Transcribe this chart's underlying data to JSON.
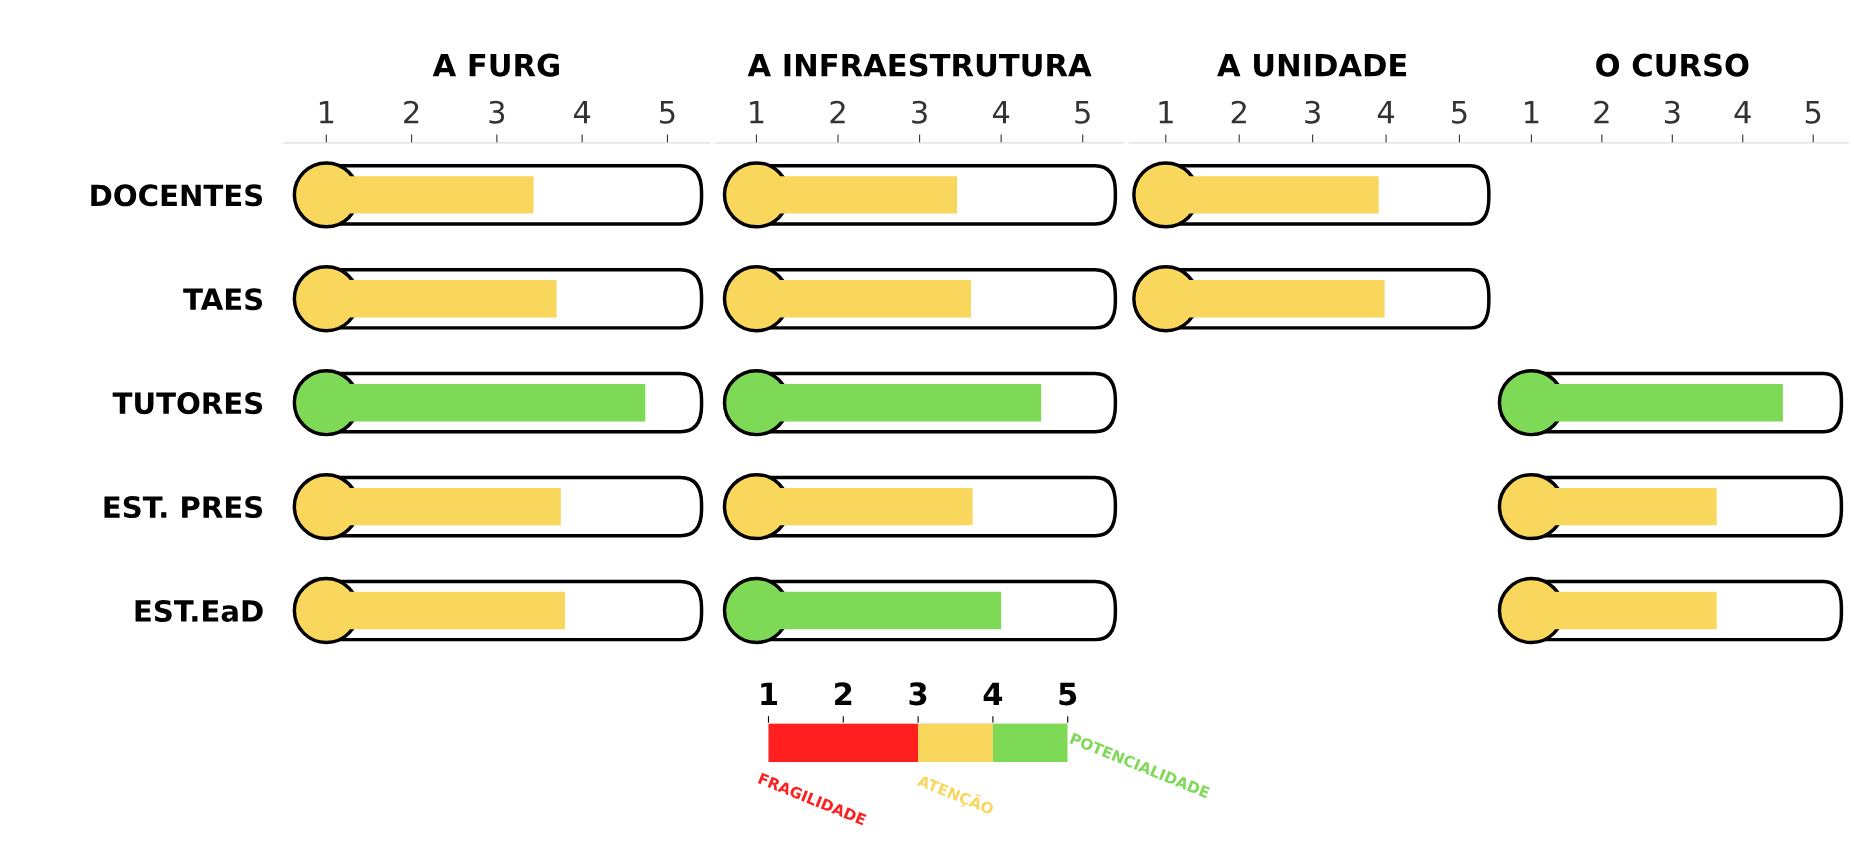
{
  "chart_data": [
    {
      "type": "bar",
      "orientation": "horizontal",
      "title": "A FURG",
      "categories": [
        "DOCENTES",
        "TAES",
        "TUTORES",
        "EST. PRES",
        "EST.EaD"
      ],
      "values": [
        3.43,
        3.7,
        4.74,
        3.75,
        3.8
      ],
      "colors": [
        "#f9d65c",
        "#f9d65c",
        "#7ed957",
        "#f9d65c",
        "#f9d65c"
      ],
      "xlim": [
        0.5,
        5.5
      ],
      "xticks": [
        1,
        2,
        3,
        4,
        5
      ],
      "grid": false
    },
    {
      "type": "bar",
      "orientation": "horizontal",
      "title": "A INFRAESTRUTURA",
      "categories": [
        null,
        null,
        null,
        null,
        null
      ],
      "values": [
        3.46,
        3.63,
        4.49,
        3.65,
        4.0
      ],
      "colors": [
        "#f9d65c",
        "#f9d65c",
        "#7ed957",
        "#f9d65c",
        "#7ed957"
      ],
      "xlim": [
        0.5,
        5.5
      ],
      "xticks": [
        1,
        2,
        3,
        4,
        5
      ],
      "grid": false,
      "tick_labels": "x"
    },
    {
      "type": "bar",
      "orientation": "horizontal",
      "title": "A UNIDADE",
      "categories": [
        null,
        null,
        null,
        null,
        null
      ],
      "values": [
        3.9,
        3.98,
        null,
        null,
        null
      ],
      "colors": [
        "#f9d65c",
        "#f9d65c",
        null,
        null,
        null
      ],
      "xlim": [
        0.5,
        5.5
      ],
      "xticks": [
        1,
        2,
        3,
        4,
        5
      ],
      "grid": false,
      "tick_labels": "x"
    },
    {
      "type": "bar",
      "orientation": "horizontal",
      "title": "O CURSO",
      "categories": [
        null,
        null,
        null,
        null,
        null
      ],
      "values": [
        null,
        null,
        4.57,
        3.63,
        3.63
      ],
      "colors": [
        null,
        null,
        "#7ed957",
        "#f9d65c",
        "#f9d65c"
      ],
      "xlim": [
        0.5,
        5.5
      ],
      "xticks": [
        1,
        2,
        3,
        4,
        5
      ],
      "grid": false,
      "tick_labels": "x"
    },
    {
      "type": "bar",
      "orientation": "horizontal",
      "stacked": true,
      "categories": [
        null
      ],
      "xlim": [
        1,
        5
      ],
      "xticks": [
        1,
        2,
        3,
        4,
        5
      ],
      "tick_labels": "x",
      "series": [
        {
          "name": "FRAGILIDADE",
          "color": "#ff1f1f",
          "values": [
            3
          ]
        },
        {
          "name": "ATENÇÃO",
          "color": "#f9d65c",
          "values": [
            1
          ]
        },
        {
          "name": "POTENCIALIDADE",
          "color": "#7ed957",
          "values": [
            1
          ]
        }
      ]
    }
  ]
}
